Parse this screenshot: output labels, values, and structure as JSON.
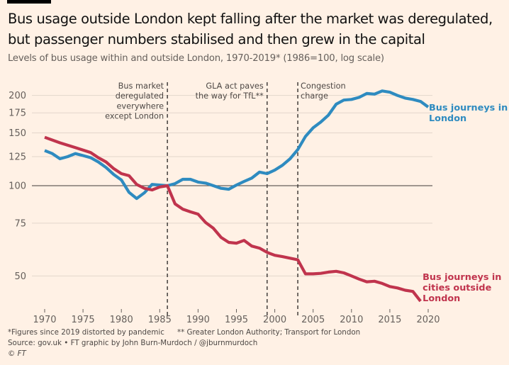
{
  "header": {
    "title_line1": "Bus usage outside London kept falling after the market was deregulated,",
    "title_line2": "but passenger numbers stabilised and then grew in the capital",
    "subtitle": "Levels of bus usage within and outside London, 1970-2019* (1986=100, log scale)"
  },
  "footer": {
    "footnote1": "*Figures since 2019 distorted by pandemic",
    "footnote2": "** Greater London Authority; Transport for London",
    "source": "Source: gov.uk • FT graphic by John Burn-Murdoch / @jburnmurdoch",
    "copyright": "© FT"
  },
  "colors": {
    "background": "#fff1e5",
    "london": "#2e8bc0",
    "outside": "#c0344d",
    "grid": "#e3d6cb",
    "baseline": "#66605c",
    "event_line": "#4d4845"
  },
  "chart_data": {
    "type": "line",
    "title": "Bus usage outside London kept falling after the market was deregulated, but passenger numbers stabilised and then grew in the capital",
    "subtitle": "Levels of bus usage within and outside London, 1970-2019* (1986=100, log scale)",
    "xlabel": "",
    "ylabel": "",
    "yscale": "log",
    "ylim": [
      39,
      215
    ],
    "xlim": [
      1969,
      2021
    ],
    "baseline": 100,
    "grid": true,
    "x_ticks": [
      1970,
      1975,
      1980,
      1985,
      1990,
      1995,
      2000,
      2005,
      2010,
      2015,
      2020
    ],
    "y_ticks": [
      50,
      75,
      100,
      125,
      150,
      175,
      200
    ],
    "events": [
      {
        "year": 1986,
        "lines": [
          "Bus market",
          "deregulated",
          "everywhere",
          "except London"
        ],
        "align": "left-of-line"
      },
      {
        "year": 1999,
        "lines": [
          "GLA act paves",
          "the way for TfL**"
        ],
        "align": "left-of-line"
      },
      {
        "year": 2003,
        "lines": [
          "Congestion",
          "charge"
        ],
        "align": "right-of-line"
      }
    ],
    "series": [
      {
        "name": "Bus journeys in London",
        "label_lines": [
          "Bus journeys in",
          "London"
        ],
        "color": "#2e8bc0",
        "x": [
          1970,
          1971,
          1972,
          1973,
          1974,
          1975,
          1976,
          1977,
          1978,
          1979,
          1980,
          1981,
          1982,
          1983,
          1984,
          1985,
          1986,
          1987,
          1988,
          1989,
          1990,
          1991,
          1992,
          1993,
          1994,
          1995,
          1996,
          1997,
          1998,
          1999,
          2000,
          2001,
          2002,
          2003,
          2004,
          2005,
          2006,
          2007,
          2008,
          2009,
          2010,
          2011,
          2012,
          2013,
          2014,
          2015,
          2016,
          2017,
          2018,
          2019,
          2020
        ],
        "values": [
          131,
          128,
          123,
          125,
          128,
          126,
          124,
          120,
          115,
          109,
          104.5,
          95,
          90.6,
          94.7,
          101,
          100.5,
          100,
          101.6,
          105,
          105,
          102.8,
          102,
          100,
          98,
          97.3,
          100.5,
          103.3,
          106,
          111,
          109.7,
          112.7,
          117,
          123,
          132,
          146,
          156,
          163,
          172,
          187,
          193,
          194,
          197,
          203,
          202,
          207,
          205,
          200,
          196,
          194,
          191,
          183
        ]
      },
      {
        "name": "Bus journeys in cities outside London",
        "label_lines": [
          "Bus journeys in",
          "cities outside",
          "London"
        ],
        "color": "#c0344d",
        "x": [
          1970,
          1972,
          1974,
          1976,
          1977,
          1978,
          1979,
          1980,
          1981,
          1982,
          1983,
          1984,
          1985,
          1986,
          1987,
          1988,
          1989,
          1990,
          1991,
          1992,
          1993,
          1994,
          1995,
          1996,
          1997,
          1998,
          1999,
          2000,
          2001,
          2002,
          2003,
          2004,
          2005,
          2006,
          2007,
          2008,
          2009,
          2010,
          2011,
          2012,
          2013,
          2014,
          2015,
          2016,
          2017,
          2018,
          2019
        ],
        "values": [
          145,
          139,
          134,
          129,
          124,
          120,
          114,
          109.7,
          108,
          101,
          98,
          96.8,
          99,
          100,
          87,
          83.5,
          81.8,
          80.4,
          75.3,
          72.1,
          67.2,
          64.7,
          64.3,
          65.7,
          62.9,
          61.9,
          59.9,
          58.6,
          58,
          57.3,
          56.6,
          50.8,
          50.8,
          51,
          51.5,
          51.8,
          51.2,
          50,
          48.8,
          47.8,
          48,
          47.2,
          46.1,
          45.6,
          44.8,
          44.4,
          41.2
        ]
      }
    ]
  }
}
